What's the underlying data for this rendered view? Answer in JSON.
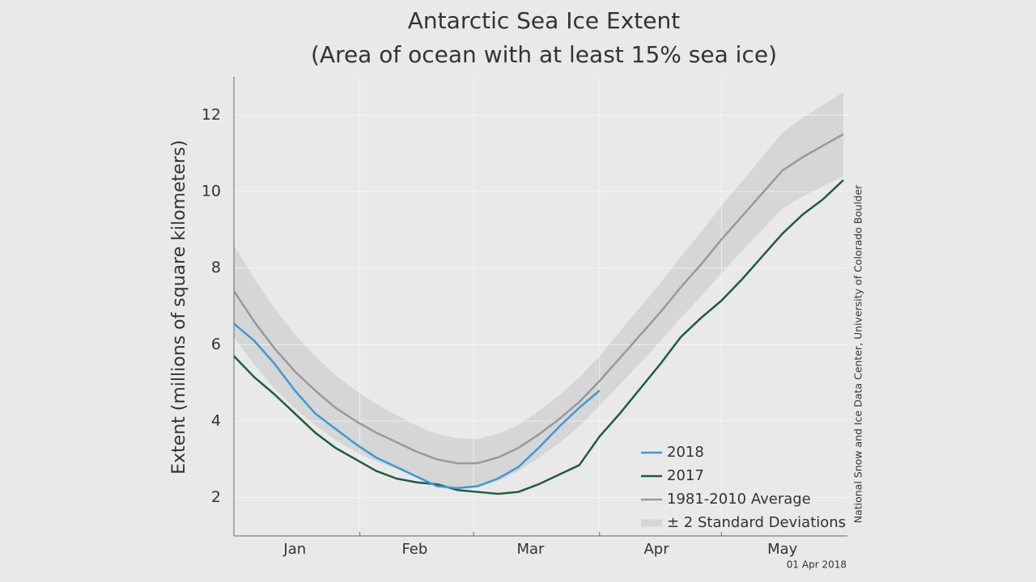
{
  "chart_data": {
    "type": "line",
    "title": "Antarctic Sea Ice Extent",
    "subtitle": "(Area of ocean with at least 15% sea ice)",
    "y_label": "Extent (millions of square kilometers)",
    "source": "National Snow and Ice Data Center, University of Colorado Boulder",
    "date": "01 Apr 2018",
    "x": [
      1,
      6,
      11,
      16,
      21,
      26,
      31,
      36,
      41,
      46,
      51,
      56,
      61,
      66,
      71,
      76,
      81,
      86,
      91,
      96,
      101,
      106,
      111,
      116,
      121,
      126,
      131,
      136,
      141,
      146,
      151
    ],
    "xlim": [
      1,
      152
    ],
    "xticks": [
      {
        "value": 16,
        "label": "Jan"
      },
      {
        "value": 45.5,
        "label": "Feb"
      },
      {
        "value": 74,
        "label": "Mar"
      },
      {
        "value": 105,
        "label": "Apr"
      },
      {
        "value": 136,
        "label": "May"
      }
    ],
    "xgrid": [
      32,
      60,
      91,
      121
    ],
    "ylim": [
      1,
      13
    ],
    "yticks": [
      2,
      4,
      6,
      8,
      10,
      12
    ],
    "grid": true,
    "legend": "lower right",
    "band": {
      "name": "± 2 Standard Deviations",
      "color": "#d6d6d6",
      "upper": [
        8.6,
        7.72,
        6.95,
        6.27,
        5.7,
        5.2,
        4.8,
        4.45,
        4.15,
        3.88,
        3.66,
        3.55,
        3.53,
        3.67,
        3.9,
        4.26,
        4.67,
        5.14,
        5.7,
        6.34,
        6.98,
        7.61,
        8.3,
        8.94,
        9.63,
        10.26,
        10.9,
        11.54,
        11.93,
        12.26,
        12.6
      ],
      "lower": [
        6.2,
        5.48,
        4.85,
        4.33,
        3.9,
        3.5,
        3.2,
        2.95,
        2.75,
        2.52,
        2.34,
        2.25,
        2.27,
        2.43,
        2.7,
        3.04,
        3.43,
        3.86,
        4.4,
        4.96,
        5.52,
        6.09,
        6.7,
        7.26,
        7.87,
        8.44,
        9.0,
        9.56,
        9.87,
        10.14,
        10.4
      ]
    },
    "series": [
      {
        "name": "2018",
        "color": "#3a9ad9",
        "values": [
          6.55,
          6.1,
          5.5,
          4.8,
          4.2,
          3.8,
          3.4,
          3.05,
          2.8,
          2.55,
          2.3,
          2.25,
          2.3,
          2.5,
          2.8,
          3.3,
          3.85,
          4.35,
          4.8,
          null,
          null,
          null,
          null,
          null,
          null,
          null,
          null,
          null,
          null,
          null,
          null
        ]
      },
      {
        "name": "2017",
        "color": "#1f5c3e",
        "values": [
          5.7,
          5.15,
          4.7,
          4.2,
          3.7,
          3.3,
          3.0,
          2.7,
          2.5,
          2.4,
          2.35,
          2.2,
          2.15,
          2.1,
          2.15,
          2.35,
          2.6,
          2.85,
          3.6,
          4.2,
          4.85,
          5.5,
          6.2,
          6.7,
          7.15,
          7.7,
          8.3,
          8.9,
          9.4,
          9.8,
          10.3
        ]
      },
      {
        "name": "1981-2010 Average",
        "color": "#999999",
        "values": [
          7.4,
          6.6,
          5.9,
          5.3,
          4.8,
          4.35,
          4.0,
          3.7,
          3.45,
          3.2,
          3.0,
          2.9,
          2.9,
          3.05,
          3.3,
          3.65,
          4.05,
          4.5,
          5.05,
          5.65,
          6.25,
          6.85,
          7.5,
          8.1,
          8.75,
          9.35,
          9.95,
          10.55,
          10.9,
          11.2,
          11.5
        ]
      }
    ]
  }
}
